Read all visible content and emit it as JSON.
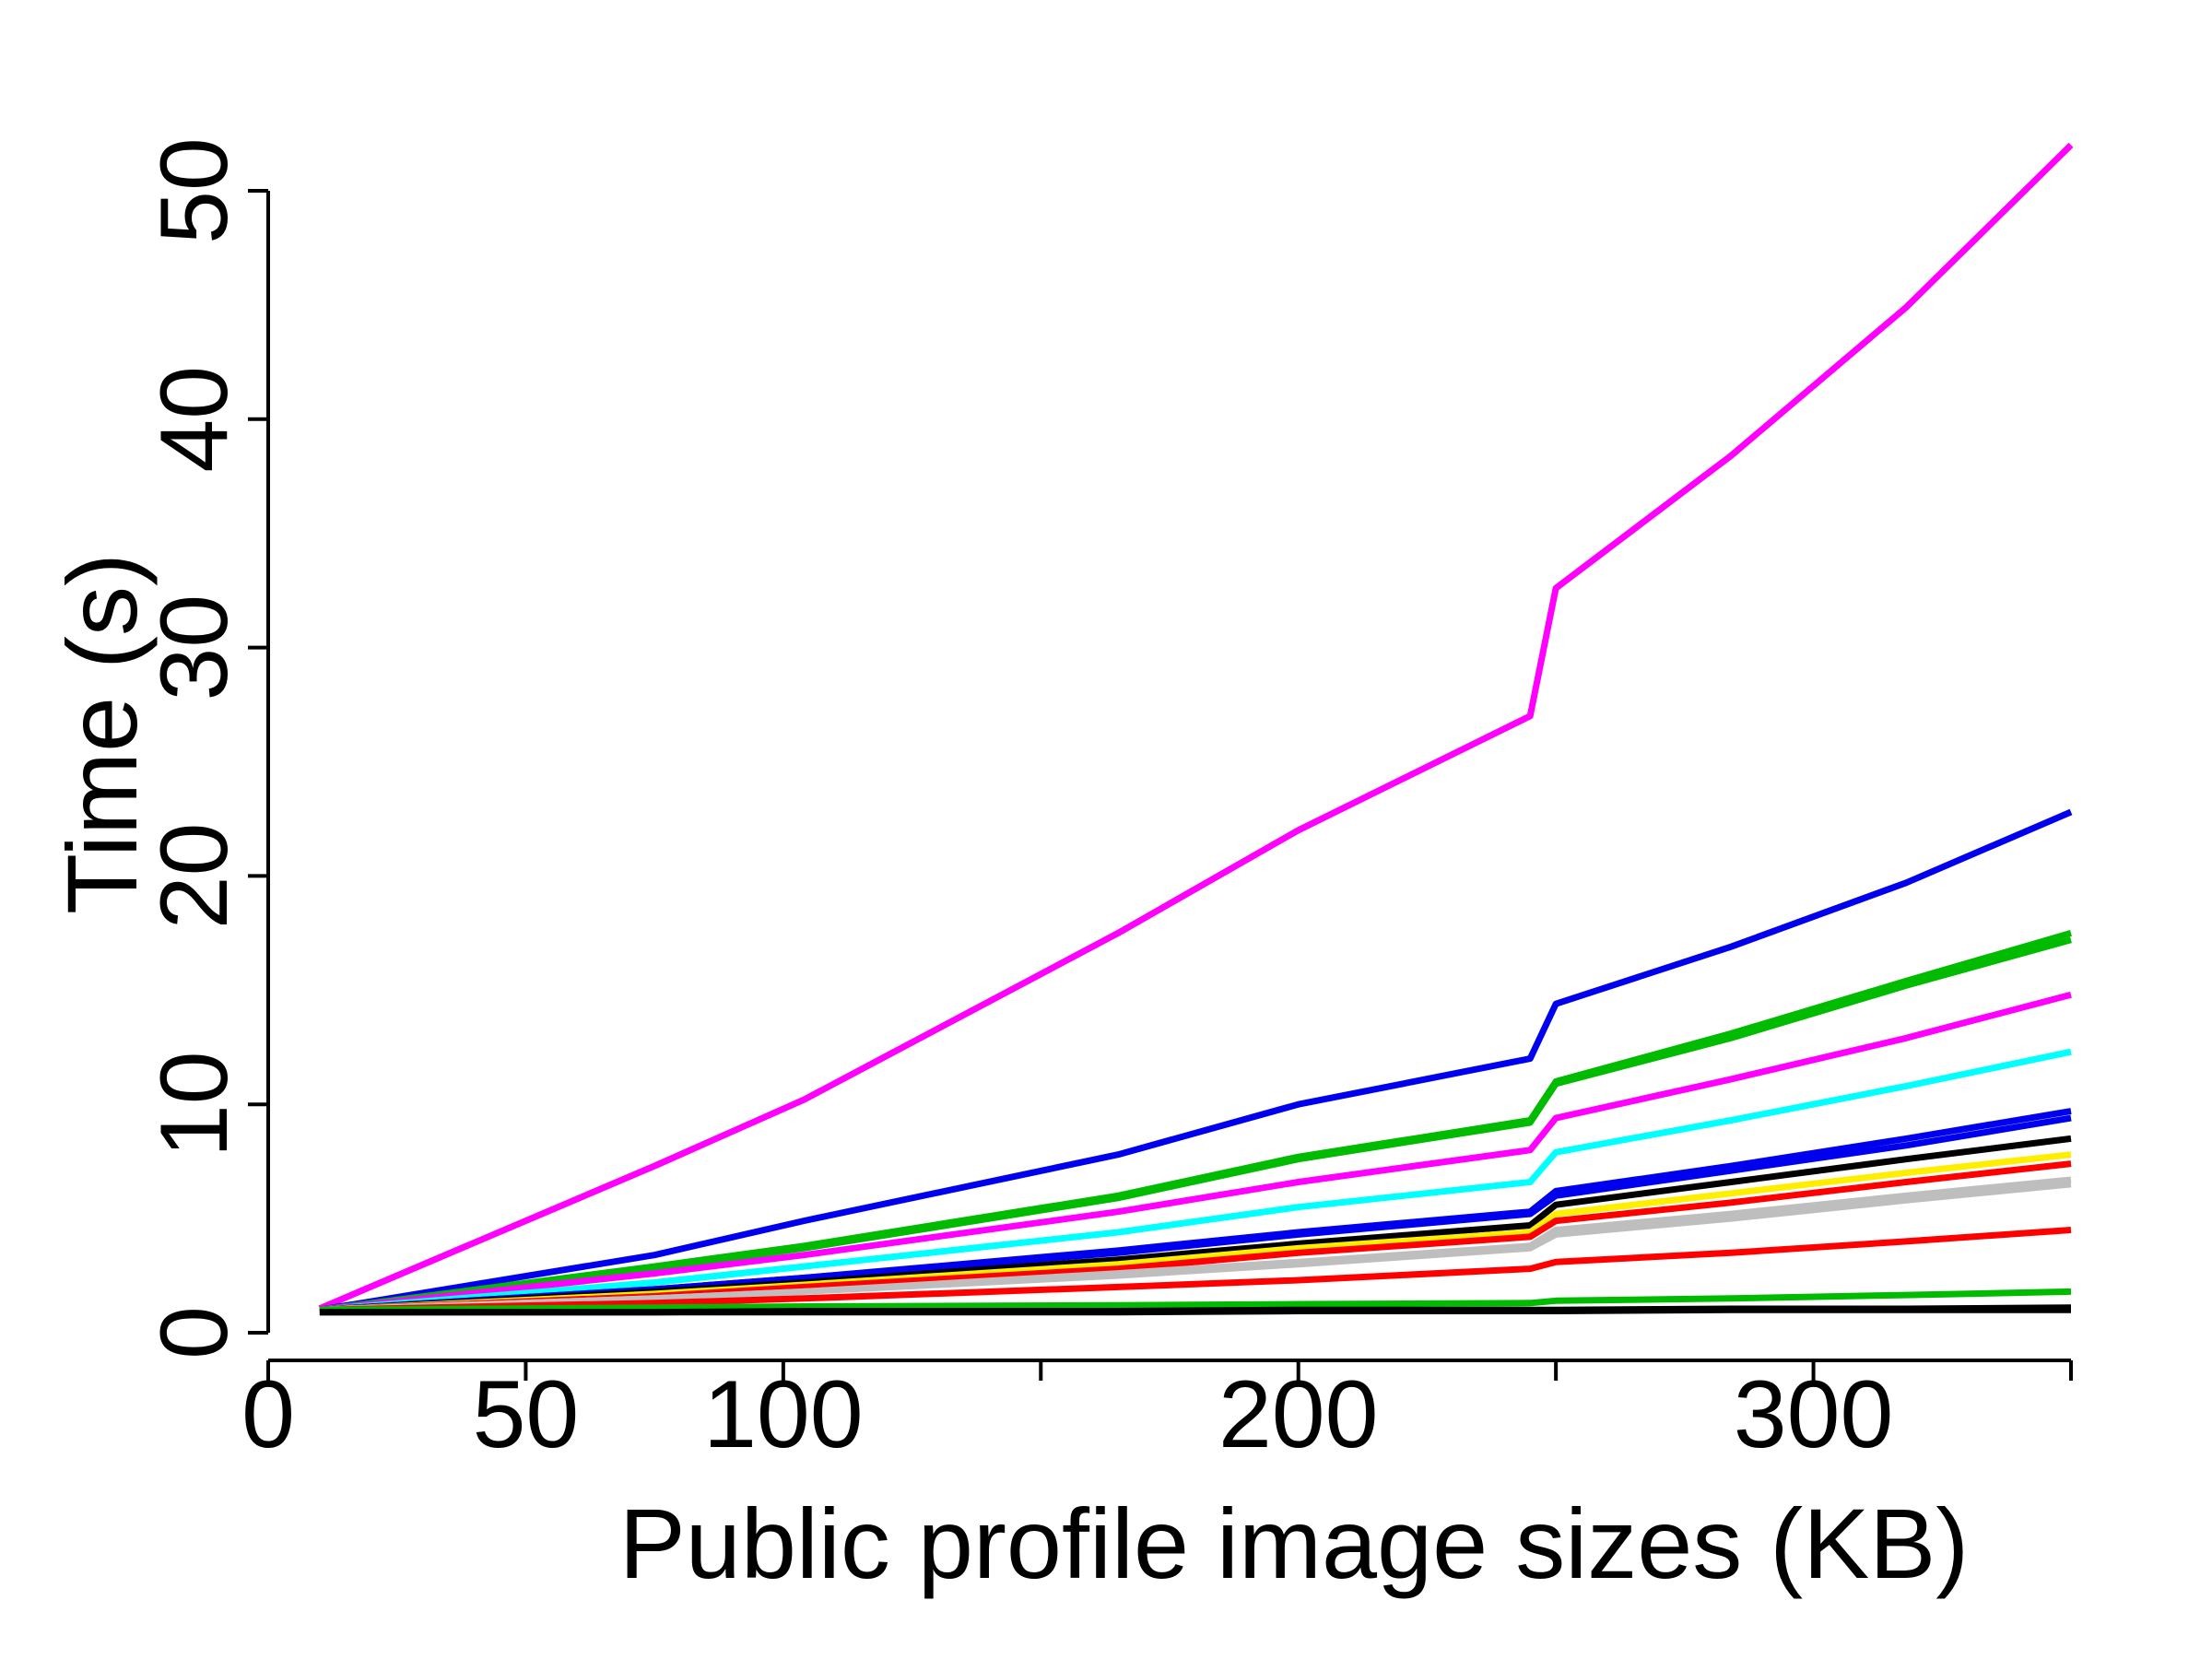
{
  "chart_data": {
    "type": "line",
    "x_label": "Public profile image sizes (KB)",
    "y_label": "Time (s)",
    "x": [
      10,
      75,
      104,
      165,
      200,
      245,
      250,
      284,
      318,
      350
    ],
    "xlim": [
      0,
      350
    ],
    "xticks": [
      0,
      50,
      100,
      {
        "value": 150,
        "label": null
      },
      200,
      {
        "value": 250,
        "label": null
      },
      300,
      {
        "value": 350,
        "label": null
      }
    ],
    "ylim": [
      0,
      50
    ],
    "yticks": [
      0,
      10,
      20,
      30,
      40,
      50
    ],
    "series": [
      {
        "color": "#ff00ff",
        "values": [
          1.06,
          7.3,
          10.2,
          17.5,
          22.0,
          27.0,
          32.6,
          38.4,
          44.9,
          52.0
        ]
      },
      {
        "color": "#0000ee",
        "values": [
          1,
          3.4,
          4.9,
          7.8,
          10.0,
          12.0,
          14.4,
          16.9,
          19.7,
          22.8
        ]
      },
      {
        "color": "#00bb00",
        "values": [
          1,
          2.9,
          3.8,
          6.0,
          7.7,
          9.3,
          11.0,
          13.1,
          15.4,
          17.5
        ]
      },
      {
        "color": "#00bb00",
        "values": [
          1,
          2.8,
          3.7,
          5.9,
          7.6,
          9.2,
          10.9,
          12.9,
          15.2,
          17.2
        ]
      },
      {
        "color": "#ff00ff",
        "values": [
          1,
          2.6,
          3.4,
          5.3,
          6.6,
          8.0,
          9.4,
          11.1,
          12.9,
          14.8
        ]
      },
      {
        "color": "#00ffff",
        "values": [
          1,
          2.2,
          2.9,
          4.4,
          5.5,
          6.6,
          7.9,
          9.3,
          10.8,
          12.3
        ]
      },
      {
        "color": "#0000ee",
        "values": [
          1,
          1.9,
          2.4,
          3.6,
          4.4,
          5.3,
          6.2,
          7.3,
          8.5,
          9.7
        ]
      },
      {
        "color": "#0000ee",
        "values": [
          1,
          1.9,
          2.4,
          3.5,
          4.3,
          5.2,
          6.0,
          7.1,
          8.2,
          9.4
        ]
      },
      {
        "color": "#000000",
        "values": [
          1,
          1.8,
          2.2,
          3.2,
          3.9,
          4.7,
          5.6,
          6.6,
          7.6,
          8.5
        ]
      },
      {
        "color": "#ffee00",
        "values": [
          1,
          1.7,
          2.1,
          3.0,
          3.7,
          4.4,
          5.2,
          6.1,
          7.0,
          7.8
        ]
      },
      {
        "color": "#ff0000",
        "values": [
          1,
          1.6,
          2.0,
          2.8,
          3.5,
          4.2,
          4.9,
          5.7,
          6.6,
          7.4
        ]
      },
      {
        "color": "#bebebe",
        "values": [
          1,
          1.5,
          1.8,
          2.6,
          3.1,
          3.8,
          4.5,
          5.2,
          6.0,
          6.7
        ]
      },
      {
        "color": "#bebebe",
        "values": [
          1,
          1.5,
          1.8,
          2.5,
          3.0,
          3.7,
          4.3,
          5.0,
          5.8,
          6.5
        ]
      },
      {
        "color": "#ff0000",
        "values": [
          1,
          1.3,
          1.5,
          2.0,
          2.3,
          2.8,
          3.1,
          3.5,
          4.0,
          4.5
        ]
      },
      {
        "color": "#00bb00",
        "values": [
          1,
          1.1,
          1.15,
          1.2,
          1.25,
          1.3,
          1.4,
          1.5,
          1.65,
          1.8
        ]
      },
      {
        "color": "#000000",
        "values": [
          0.9,
          0.9,
          0.95,
          0.95,
          1.0,
          1.0,
          1.0,
          1.05,
          1.05,
          1.1
        ]
      },
      {
        "color": "#000000",
        "values": [
          0.9,
          0.9,
          0.9,
          0.9,
          0.95,
          0.95,
          0.95,
          1.0,
          1.0,
          1.0
        ]
      }
    ]
  }
}
